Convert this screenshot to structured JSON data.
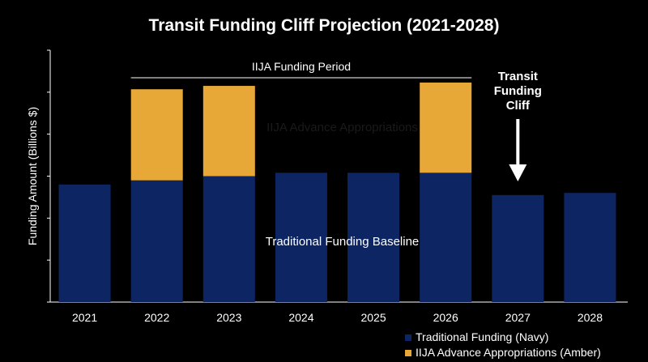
{
  "chart_data": {
    "type": "bar",
    "title": "Transit Funding Cliff Projection (2021-2028)",
    "ylabel": "Funding Amount (Billions $)",
    "xlabel": "",
    "categories": [
      "2021",
      "2022",
      "2023",
      "2024",
      "2025",
      "2026",
      "2027",
      "2028"
    ],
    "ylim": [
      0,
      6
    ],
    "series": [
      {
        "name": "Traditional Funding (Navy)",
        "color": "#0d2663",
        "values": [
          2.8,
          2.9,
          3.0,
          3.08,
          3.08,
          3.08,
          2.55,
          2.6
        ]
      },
      {
        "name": "IIJA Advance Appropriations (Amber)",
        "color": "#e8a838",
        "values": [
          0,
          2.17,
          2.15,
          0,
          0,
          2.15,
          0,
          0
        ]
      }
    ],
    "annotations": {
      "period_label": "IIJA Funding Period",
      "amber_label": "IIJA Advance Appropriations",
      "navy_label": "Traditional Funding Baseline",
      "cliff_label": [
        "Transit",
        "Funding",
        "Cliff"
      ]
    },
    "grid": false,
    "legend_position": "bottom-right"
  }
}
